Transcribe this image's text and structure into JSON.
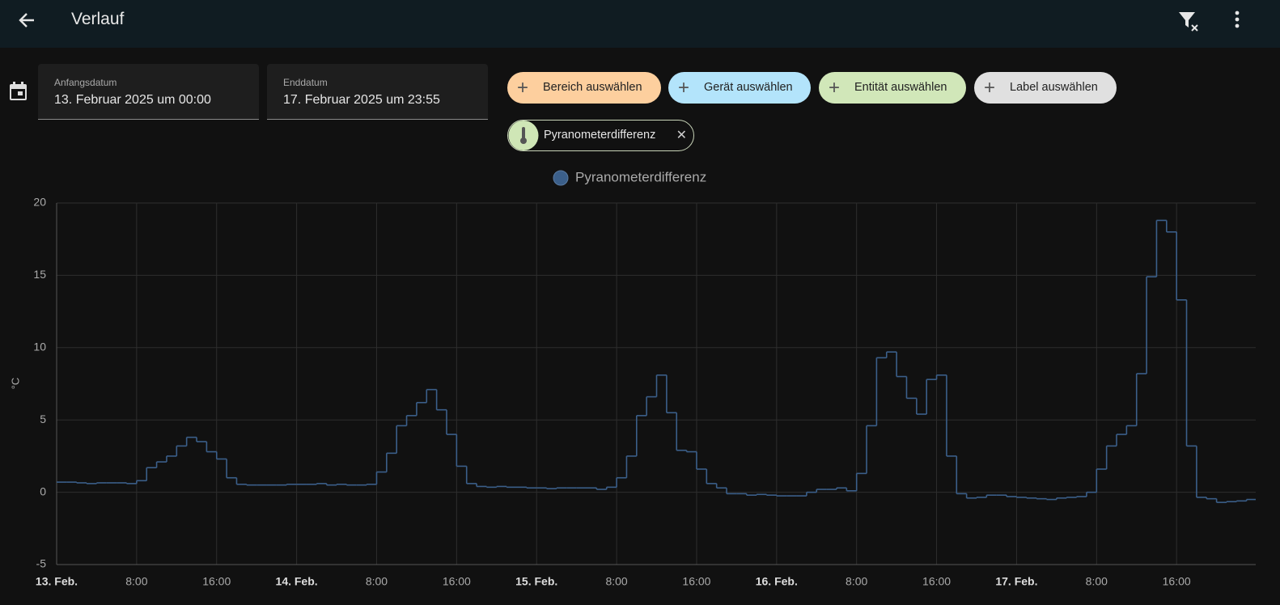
{
  "header": {
    "title": "Verlauf"
  },
  "date_range": {
    "start": {
      "label": "Anfangsdatum",
      "value": "13. Februar 2025 um 00:00"
    },
    "end": {
      "label": "Enddatum",
      "value": "17. Februar 2025 um 23:55"
    }
  },
  "filters": [
    "Bereich auswählen",
    "Gerät auswählen",
    "Entität auswählen",
    "Label auswählen"
  ],
  "selected": [
    "Pyranometerdifferenz"
  ],
  "chart_data": {
    "type": "line",
    "step": true,
    "ylabel": "°C",
    "grid": true,
    "legend": "top",
    "x": [
      "2025-02-13T00:00",
      "2025-02-13T01:00",
      "2025-02-13T02:00",
      "2025-02-13T03:00",
      "2025-02-13T04:00",
      "2025-02-13T05:00",
      "2025-02-13T06:00",
      "2025-02-13T07:00",
      "2025-02-13T08:00",
      "2025-02-13T09:00",
      "2025-02-13T10:00",
      "2025-02-13T11:00",
      "2025-02-13T12:00",
      "2025-02-13T13:00",
      "2025-02-13T14:00",
      "2025-02-13T15:00",
      "2025-02-13T16:00",
      "2025-02-13T17:00",
      "2025-02-13T18:00",
      "2025-02-13T19:00",
      "2025-02-13T20:00",
      "2025-02-13T21:00",
      "2025-02-13T22:00",
      "2025-02-13T23:00",
      "2025-02-14T00:00",
      "2025-02-14T01:00",
      "2025-02-14T02:00",
      "2025-02-14T03:00",
      "2025-02-14T04:00",
      "2025-02-14T05:00",
      "2025-02-14T06:00",
      "2025-02-14T07:00",
      "2025-02-14T08:00",
      "2025-02-14T09:00",
      "2025-02-14T10:00",
      "2025-02-14T11:00",
      "2025-02-14T12:00",
      "2025-02-14T13:00",
      "2025-02-14T14:00",
      "2025-02-14T15:00",
      "2025-02-14T16:00",
      "2025-02-14T17:00",
      "2025-02-14T18:00",
      "2025-02-14T19:00",
      "2025-02-14T20:00",
      "2025-02-14T21:00",
      "2025-02-14T22:00",
      "2025-02-14T23:00",
      "2025-02-15T00:00",
      "2025-02-15T01:00",
      "2025-02-15T02:00",
      "2025-02-15T03:00",
      "2025-02-15T04:00",
      "2025-02-15T05:00",
      "2025-02-15T06:00",
      "2025-02-15T07:00",
      "2025-02-15T08:00",
      "2025-02-15T09:00",
      "2025-02-15T10:00",
      "2025-02-15T11:00",
      "2025-02-15T12:00",
      "2025-02-15T13:00",
      "2025-02-15T14:00",
      "2025-02-15T15:00",
      "2025-02-15T16:00",
      "2025-02-15T17:00",
      "2025-02-15T18:00",
      "2025-02-15T19:00",
      "2025-02-15T20:00",
      "2025-02-15T21:00",
      "2025-02-15T22:00",
      "2025-02-15T23:00",
      "2025-02-16T00:00",
      "2025-02-16T01:00",
      "2025-02-16T02:00",
      "2025-02-16T03:00",
      "2025-02-16T04:00",
      "2025-02-16T05:00",
      "2025-02-16T06:00",
      "2025-02-16T07:00",
      "2025-02-16T08:00",
      "2025-02-16T09:00",
      "2025-02-16T10:00",
      "2025-02-16T11:00",
      "2025-02-16T12:00",
      "2025-02-16T13:00",
      "2025-02-16T14:00",
      "2025-02-16T15:00",
      "2025-02-16T16:00",
      "2025-02-16T17:00",
      "2025-02-16T18:00",
      "2025-02-16T19:00",
      "2025-02-16T20:00",
      "2025-02-16T21:00",
      "2025-02-16T22:00",
      "2025-02-16T23:00",
      "2025-02-17T00:00",
      "2025-02-17T01:00",
      "2025-02-17T02:00",
      "2025-02-17T03:00",
      "2025-02-17T04:00",
      "2025-02-17T05:00",
      "2025-02-17T06:00",
      "2025-02-17T07:00",
      "2025-02-17T08:00",
      "2025-02-17T09:00",
      "2025-02-17T10:00",
      "2025-02-17T11:00",
      "2025-02-17T12:00",
      "2025-02-17T13:00",
      "2025-02-17T14:00",
      "2025-02-17T15:00",
      "2025-02-17T16:00",
      "2025-02-17T17:00",
      "2025-02-17T18:00",
      "2025-02-17T19:00",
      "2025-02-17T20:00",
      "2025-02-17T21:00",
      "2025-02-17T22:00",
      "2025-02-17T23:00"
    ],
    "series": [
      {
        "name": "Pyranometerdifferenz",
        "color": "#3b5f8a",
        "values": [
          0.7,
          0.7,
          0.65,
          0.6,
          0.65,
          0.65,
          0.65,
          0.6,
          0.8,
          1.7,
          2.1,
          2.5,
          3.2,
          3.8,
          3.5,
          2.8,
          2.3,
          1.0,
          0.55,
          0.5,
          0.5,
          0.5,
          0.5,
          0.55,
          0.55,
          0.55,
          0.6,
          0.5,
          0.55,
          0.5,
          0.5,
          0.55,
          1.4,
          2.7,
          4.6,
          5.3,
          6.2,
          7.1,
          5.7,
          4.0,
          1.8,
          0.6,
          0.4,
          0.35,
          0.4,
          0.35,
          0.35,
          0.3,
          0.3,
          0.25,
          0.3,
          0.3,
          0.3,
          0.3,
          0.2,
          0.35,
          1.0,
          2.5,
          5.3,
          6.6,
          8.1,
          5.5,
          2.9,
          2.8,
          1.6,
          0.6,
          0.3,
          -0.1,
          -0.1,
          -0.2,
          -0.15,
          -0.2,
          -0.25,
          -0.25,
          -0.25,
          0.0,
          0.2,
          0.2,
          0.3,
          0.1,
          1.3,
          4.6,
          9.3,
          9.7,
          8.0,
          6.5,
          5.4,
          7.8,
          8.1,
          2.5,
          -0.1,
          -0.4,
          -0.35,
          -0.2,
          -0.2,
          -0.3,
          -0.35,
          -0.4,
          -0.45,
          -0.5,
          -0.4,
          -0.35,
          -0.3,
          0.0,
          1.6,
          3.2,
          4.0,
          4.6,
          8.2,
          14.9,
          18.8,
          18.0,
          13.3,
          3.2,
          -0.35,
          -0.45,
          -0.7,
          -0.65,
          -0.6,
          -0.5
        ]
      }
    ],
    "xlim": [
      "2025-02-13T00:00",
      "2025-02-17T23:55"
    ],
    "xticks": [
      {
        "value": "2025-02-13T00:00",
        "label": "13. Feb."
      },
      {
        "value": "2025-02-13T08:00",
        "label": "8:00"
      },
      {
        "value": "2025-02-13T16:00",
        "label": "16:00"
      },
      {
        "value": "2025-02-14T00:00",
        "label": "14. Feb."
      },
      {
        "value": "2025-02-14T08:00",
        "label": "8:00"
      },
      {
        "value": "2025-02-14T16:00",
        "label": "16:00"
      },
      {
        "value": "2025-02-15T00:00",
        "label": "15. Feb."
      },
      {
        "value": "2025-02-15T08:00",
        "label": "8:00"
      },
      {
        "value": "2025-02-15T16:00",
        "label": "16:00"
      },
      {
        "value": "2025-02-16T00:00",
        "label": "16. Feb."
      },
      {
        "value": "2025-02-16T08:00",
        "label": "8:00"
      },
      {
        "value": "2025-02-16T16:00",
        "label": "16:00"
      },
      {
        "value": "2025-02-17T00:00",
        "label": "17. Feb."
      },
      {
        "value": "2025-02-17T08:00",
        "label": "8:00"
      },
      {
        "value": "2025-02-17T16:00",
        "label": "16:00"
      }
    ],
    "ylim": [
      -5,
      20
    ],
    "yticks": [
      -5,
      0,
      5,
      10,
      15,
      20
    ]
  }
}
